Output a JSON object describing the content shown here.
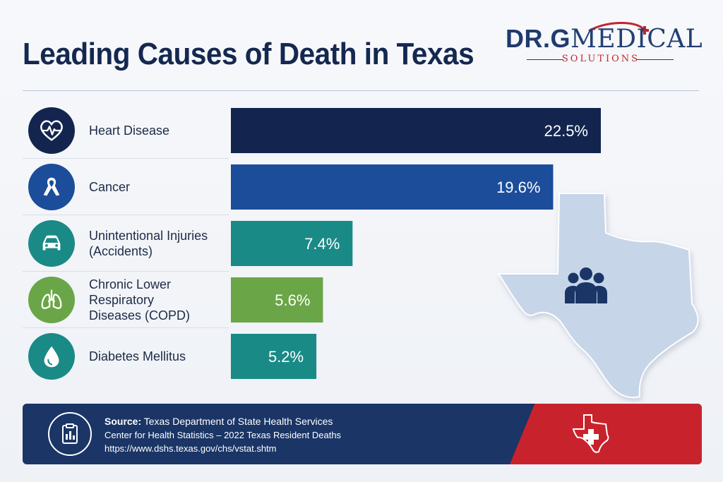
{
  "title": "Leading Causes of Death in Texas",
  "logo": {
    "prefix": "DR.G",
    "main": "MEDICAL",
    "sub": "SOLUTIONS",
    "colors": {
      "navy": "#1f3b6e",
      "red": "#c0272d"
    }
  },
  "chart_data": {
    "type": "bar",
    "orientation": "horizontal",
    "title": "Leading Causes of Death in Texas",
    "unit": "%",
    "categories": [
      "Heart Disease",
      "Cancer",
      "Unintentional Injuries\n(Accidents)",
      "Chronic Lower Respiratory\nDiseases (COPD)",
      "Diabetes Mellitus"
    ],
    "values": [
      22.5,
      19.6,
      7.4,
      5.6,
      5.2
    ],
    "value_labels": [
      "22.5%",
      "19.6%",
      "7.4%",
      "5.6%",
      "5.2%"
    ],
    "bar_colors": [
      "#13254f",
      "#1b4d9a",
      "#1a8a86",
      "#6aa647",
      "#1a8a86"
    ],
    "icons": [
      "heart-pulse-icon",
      "ribbon-icon",
      "car-icon",
      "lungs-icon",
      "drop-icon"
    ],
    "xlim": [
      0,
      22.5
    ],
    "grid": false,
    "legend": "none"
  },
  "footer": {
    "source_label": "Source:",
    "source_org": "Texas Department of State Health Services",
    "line2": "Center for Health Statistics – 2022 Texas Resident Deaths",
    "line3": "https://www.dshs.texas.gov/chs/vstat.shtm",
    "colors": {
      "navy": "#1a3566",
      "red": "#c8232c"
    }
  },
  "illustration": {
    "map": "texas-map-icon",
    "figure": "people-group-icon",
    "map_color": "#c6d5e8"
  }
}
